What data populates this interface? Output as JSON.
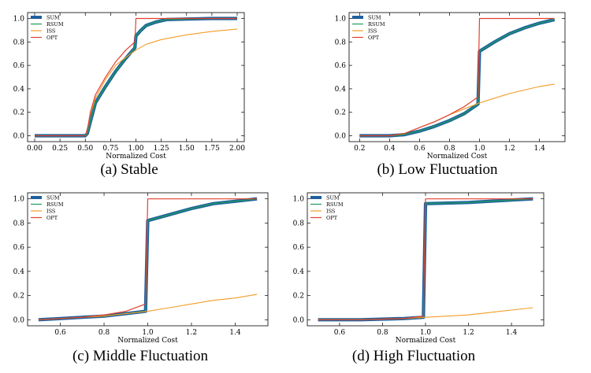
{
  "figure": {
    "colors": {
      "SUM": "#1f5f9f",
      "RSUM": "#1e9a62",
      "ISS": "#f39c27",
      "OPT": "#e2402e"
    },
    "legend_names": [
      "SUM",
      "RSUM",
      "ISS",
      "OPT"
    ],
    "legend_placement": "top-left"
  },
  "chart_data": [
    {
      "id": "a",
      "type": "line",
      "caption": "(a)  Stable",
      "xlabel": "Normalized Cost",
      "ylabel": "",
      "xlim": [
        -0.07,
        2.07
      ],
      "ylim": [
        -0.05,
        1.05
      ],
      "xticks": [
        "0.00",
        "0.25",
        "0.50",
        "0.75",
        "1.00",
        "1.25",
        "1.50",
        "1.75",
        "2.00"
      ],
      "yticks": [
        "0.0",
        "0.2",
        "0.4",
        "0.6",
        "0.8",
        "1.0"
      ],
      "grid": false,
      "series": [
        {
          "name": "SUM",
          "x": [
            0,
            0.5,
            0.52,
            0.55,
            0.6,
            0.7,
            0.8,
            0.9,
            0.99,
            1.0,
            1.05,
            1.1,
            1.2,
            1.3,
            1.5,
            1.75,
            2.0
          ],
          "y": [
            0,
            0,
            0.02,
            0.12,
            0.28,
            0.42,
            0.55,
            0.66,
            0.75,
            0.85,
            0.9,
            0.94,
            0.97,
            0.99,
            0.995,
            1.0,
            1.0
          ]
        },
        {
          "name": "RSUM",
          "x": [
            0,
            0.5,
            0.52,
            0.55,
            0.6,
            0.7,
            0.8,
            0.9,
            0.99,
            1.0,
            1.05,
            1.1,
            1.2,
            1.3,
            1.5,
            1.75,
            2.0
          ],
          "y": [
            0,
            0,
            0.02,
            0.12,
            0.28,
            0.42,
            0.55,
            0.66,
            0.75,
            0.85,
            0.9,
            0.94,
            0.97,
            0.99,
            0.995,
            1.0,
            1.0
          ]
        },
        {
          "name": "ISS",
          "x": [
            0,
            0.5,
            0.52,
            0.55,
            0.6,
            0.7,
            0.8,
            0.9,
            1.0,
            1.1,
            1.25,
            1.5,
            1.75,
            2.0
          ],
          "y": [
            0,
            0,
            0.05,
            0.18,
            0.32,
            0.48,
            0.6,
            0.67,
            0.73,
            0.78,
            0.82,
            0.86,
            0.89,
            0.91
          ]
        },
        {
          "name": "OPT",
          "x": [
            0,
            0.5,
            0.52,
            0.55,
            0.6,
            0.7,
            0.8,
            0.9,
            0.99,
            1.0,
            1.5,
            2.0
          ],
          "y": [
            0,
            0,
            0.05,
            0.2,
            0.35,
            0.5,
            0.63,
            0.73,
            0.8,
            1.0,
            1.0,
            1.0
          ]
        }
      ]
    },
    {
      "id": "b",
      "type": "line",
      "caption": "(b)  Low Fluctuation",
      "xlabel": "Normalized Cost",
      "ylabel": "",
      "xlim": [
        0.13,
        1.57
      ],
      "ylim": [
        -0.05,
        1.05
      ],
      "xticks": [
        "0.2",
        "0.4",
        "0.6",
        "0.8",
        "1.0",
        "1.2",
        "1.4"
      ],
      "yticks": [
        "0.0",
        "0.2",
        "0.4",
        "0.6",
        "0.8",
        "1.0"
      ],
      "grid": false,
      "series": [
        {
          "name": "SUM",
          "x": [
            0.2,
            0.4,
            0.5,
            0.6,
            0.7,
            0.8,
            0.9,
            0.99,
            1.0,
            1.1,
            1.2,
            1.3,
            1.4,
            1.5
          ],
          "y": [
            0,
            0,
            0.01,
            0.04,
            0.08,
            0.13,
            0.19,
            0.27,
            0.72,
            0.8,
            0.87,
            0.92,
            0.96,
            0.99
          ]
        },
        {
          "name": "RSUM",
          "x": [
            0.2,
            0.4,
            0.5,
            0.6,
            0.7,
            0.8,
            0.9,
            0.99,
            1.0,
            1.1,
            1.2,
            1.3,
            1.4,
            1.5
          ],
          "y": [
            0,
            0,
            0.01,
            0.04,
            0.08,
            0.13,
            0.19,
            0.27,
            0.72,
            0.8,
            0.87,
            0.92,
            0.96,
            0.99
          ]
        },
        {
          "name": "ISS",
          "x": [
            0.2,
            0.4,
            0.5,
            0.6,
            0.7,
            0.8,
            0.9,
            1.0,
            1.1,
            1.2,
            1.3,
            1.4,
            1.5
          ],
          "y": [
            0,
            0,
            0.02,
            0.07,
            0.12,
            0.18,
            0.23,
            0.28,
            0.32,
            0.36,
            0.39,
            0.42,
            0.44
          ]
        },
        {
          "name": "OPT",
          "x": [
            0.2,
            0.4,
            0.5,
            0.6,
            0.7,
            0.8,
            0.9,
            0.99,
            1.0,
            1.5
          ],
          "y": [
            0,
            0,
            0.02,
            0.07,
            0.12,
            0.18,
            0.25,
            0.33,
            1.0,
            1.0
          ]
        }
      ]
    },
    {
      "id": "c",
      "type": "line",
      "caption": "(c)  Middle Fluctuation",
      "xlabel": "Normalized Cost",
      "ylabel": "",
      "xlim": [
        0.45,
        1.55
      ],
      "ylim": [
        -0.05,
        1.05
      ],
      "xticks": [
        "0.6",
        "0.8",
        "1.0",
        "1.2",
        "1.4"
      ],
      "yticks": [
        "0.0",
        "0.2",
        "0.4",
        "0.6",
        "0.8",
        "1.0"
      ],
      "grid": false,
      "series": [
        {
          "name": "SUM",
          "x": [
            0.5,
            0.6,
            0.7,
            0.8,
            0.9,
            0.99,
            1.0,
            1.1,
            1.2,
            1.3,
            1.4,
            1.5
          ],
          "y": [
            0.0,
            0.01,
            0.02,
            0.03,
            0.05,
            0.07,
            0.82,
            0.87,
            0.92,
            0.96,
            0.98,
            1.0
          ]
        },
        {
          "name": "RSUM",
          "x": [
            0.5,
            0.6,
            0.7,
            0.8,
            0.9,
            0.99,
            1.0,
            1.1,
            1.2,
            1.3,
            1.4,
            1.5
          ],
          "y": [
            0.0,
            0.01,
            0.02,
            0.03,
            0.05,
            0.07,
            0.82,
            0.87,
            0.92,
            0.96,
            0.98,
            1.0
          ]
        },
        {
          "name": "ISS",
          "x": [
            0.5,
            0.6,
            0.7,
            0.8,
            0.9,
            1.0,
            1.1,
            1.2,
            1.3,
            1.4,
            1.5
          ],
          "y": [
            0.0,
            0.01,
            0.02,
            0.03,
            0.05,
            0.07,
            0.1,
            0.13,
            0.16,
            0.18,
            0.21
          ]
        },
        {
          "name": "OPT",
          "x": [
            0.5,
            0.6,
            0.7,
            0.8,
            0.9,
            0.99,
            1.0,
            1.5
          ],
          "y": [
            0.0,
            0.01,
            0.02,
            0.04,
            0.07,
            0.13,
            1.0,
            1.0
          ]
        }
      ]
    },
    {
      "id": "d",
      "type": "line",
      "caption": "(d)  High Fluctuation",
      "xlabel": "Normalized Cost",
      "ylabel": "",
      "xlim": [
        0.45,
        1.55
      ],
      "ylim": [
        -0.05,
        1.05
      ],
      "xticks": [
        "0.6",
        "0.8",
        "1.0",
        "1.2",
        "1.4"
      ],
      "yticks": [
        "0.0",
        "0.2",
        "0.4",
        "0.6",
        "0.8",
        "1.0"
      ],
      "grid": false,
      "series": [
        {
          "name": "SUM",
          "x": [
            0.5,
            0.7,
            0.9,
            0.99,
            1.0,
            1.2,
            1.4,
            1.5
          ],
          "y": [
            0.0,
            0.0,
            0.01,
            0.02,
            0.96,
            0.97,
            0.99,
            1.0
          ]
        },
        {
          "name": "RSUM",
          "x": [
            0.5,
            0.7,
            0.9,
            0.99,
            1.0,
            1.2,
            1.4,
            1.5
          ],
          "y": [
            0.0,
            0.0,
            0.01,
            0.02,
            0.96,
            0.97,
            0.99,
            1.0
          ]
        },
        {
          "name": "ISS",
          "x": [
            0.5,
            0.7,
            0.9,
            1.0,
            1.1,
            1.2,
            1.3,
            1.4,
            1.5
          ],
          "y": [
            0.0,
            0.0,
            0.01,
            0.02,
            0.03,
            0.04,
            0.06,
            0.08,
            0.1
          ]
        },
        {
          "name": "OPT",
          "x": [
            0.5,
            0.7,
            0.9,
            0.99,
            1.0,
            1.5
          ],
          "y": [
            0.0,
            0.0,
            0.01,
            0.03,
            1.0,
            1.0
          ]
        }
      ]
    }
  ]
}
